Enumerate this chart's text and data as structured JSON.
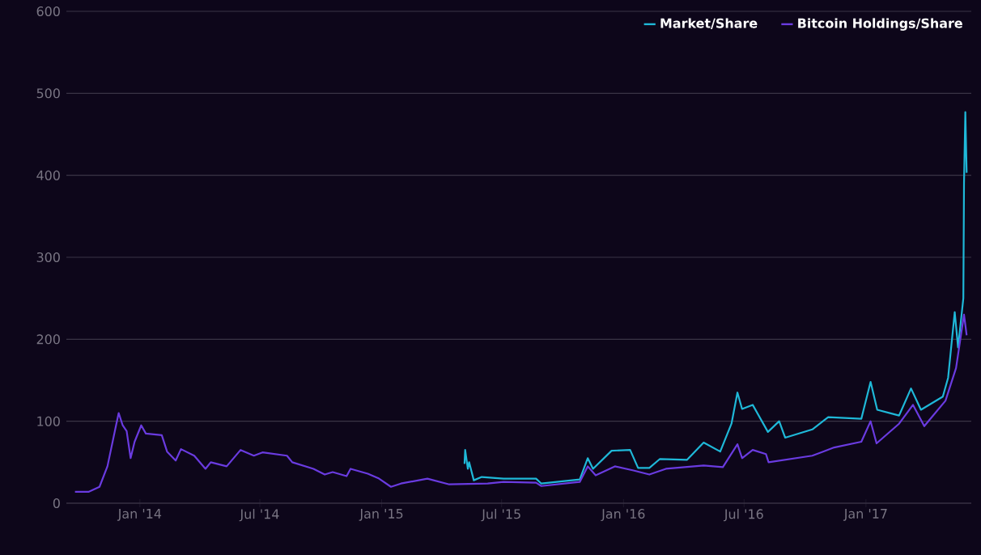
{
  "chart_data": {
    "type": "line",
    "series": [
      {
        "name": "Market/Share",
        "color": "#1fb8d8",
        "x": [
          "2015-05-06",
          "2015-05-07",
          "2015-05-11",
          "2015-05-13",
          "2015-05-20",
          "2015-06-01",
          "2015-07-04",
          "2015-08-22",
          "2015-08-30",
          "2015-10-27",
          "2015-11-08",
          "2015-11-16",
          "2015-12-14",
          "2016-01-11",
          "2016-01-23",
          "2016-02-09",
          "2016-02-25",
          "2016-04-06",
          "2016-05-01",
          "2016-05-26",
          "2016-06-12",
          "2016-06-21",
          "2016-06-28",
          "2016-07-14",
          "2016-08-06",
          "2016-08-23",
          "2016-09-01",
          "2016-10-12",
          "2016-11-05",
          "2016-12-25",
          "2017-01-08",
          "2017-01-18",
          "2017-02-20",
          "2017-03-10",
          "2017-03-25",
          "2017-04-27",
          "2017-05-05",
          "2017-05-15",
          "2017-05-20",
          "2017-05-28",
          "2017-05-29",
          "2017-05-31",
          "2017-06-02"
        ],
        "values": [
          48,
          65,
          42,
          50,
          28,
          32,
          30,
          30,
          24,
          29,
          55,
          42,
          64,
          65,
          43,
          43,
          54,
          53,
          74,
          63,
          97,
          135,
          115,
          120,
          87,
          100,
          80,
          90,
          105,
          103,
          148,
          114,
          107,
          140,
          114,
          130,
          153,
          233,
          190,
          250,
          390,
          477,
          403
        ]
      },
      {
        "name": "Bitcoin Holdings/Share",
        "color": "#6a3be0",
        "x": [
          "2013-09-25",
          "2013-10-16",
          "2013-11-01",
          "2013-11-13",
          "2013-11-26",
          "2013-11-30",
          "2013-12-06",
          "2013-12-12",
          "2013-12-18",
          "2013-12-24",
          "2014-01-03",
          "2014-01-10",
          "2014-02-03",
          "2014-02-11",
          "2014-02-24",
          "2014-03-04",
          "2014-03-24",
          "2014-04-10",
          "2014-04-18",
          "2014-05-12",
          "2014-06-02",
          "2014-06-22",
          "2014-07-05",
          "2014-08-11",
          "2014-08-19",
          "2014-09-20",
          "2014-10-07",
          "2014-10-19",
          "2014-11-09",
          "2014-11-15",
          "2014-12-11",
          "2014-12-28",
          "2015-01-15",
          "2015-01-30",
          "2015-03-11",
          "2015-04-13",
          "2015-06-10",
          "2015-07-04",
          "2015-08-22",
          "2015-08-30",
          "2015-10-27",
          "2015-11-08",
          "2015-11-20",
          "2015-12-19",
          "2016-01-16",
          "2016-02-09",
          "2016-03-05",
          "2016-05-01",
          "2016-05-30",
          "2016-06-21",
          "2016-06-28",
          "2016-07-14",
          "2016-08-03",
          "2016-08-07",
          "2016-10-12",
          "2016-11-14",
          "2016-12-25",
          "2017-01-08",
          "2017-01-17",
          "2017-02-20",
          "2017-03-13",
          "2017-03-30",
          "2017-05-01",
          "2017-05-17",
          "2017-05-29",
          "2017-06-02"
        ],
        "values": [
          14,
          14,
          20,
          45,
          95,
          110,
          95,
          88,
          55,
          75,
          95,
          85,
          83,
          63,
          52,
          66,
          58,
          42,
          50,
          45,
          65,
          58,
          62,
          58,
          50,
          42,
          35,
          38,
          33,
          42,
          36,
          30,
          20,
          24,
          30,
          23,
          24,
          26,
          25,
          21,
          26,
          45,
          34,
          45,
          40,
          35,
          42,
          46,
          44,
          72,
          55,
          65,
          60,
          50,
          58,
          68,
          75,
          100,
          73,
          97,
          120,
          94,
          125,
          165,
          230,
          205
        ]
      }
    ],
    "xlim": [
      "2013-09-12",
      "2017-06-09"
    ],
    "xticks": [
      {
        "value": "2014-01-01",
        "label": "Jan '14"
      },
      {
        "value": "2014-07-01",
        "label": "Jul '14"
      },
      {
        "value": "2015-01-01",
        "label": "Jan '15"
      },
      {
        "value": "2015-07-01",
        "label": "Jul '15"
      },
      {
        "value": "2016-01-01",
        "label": "Jan '16"
      },
      {
        "value": "2016-07-01",
        "label": "Jul '16"
      },
      {
        "value": "2017-01-01",
        "label": "Jan '17"
      }
    ],
    "ylim": [
      0,
      600
    ],
    "yticks": [
      0,
      100,
      200,
      300,
      400,
      500,
      600
    ],
    "grid": "y",
    "legend": "top right"
  }
}
